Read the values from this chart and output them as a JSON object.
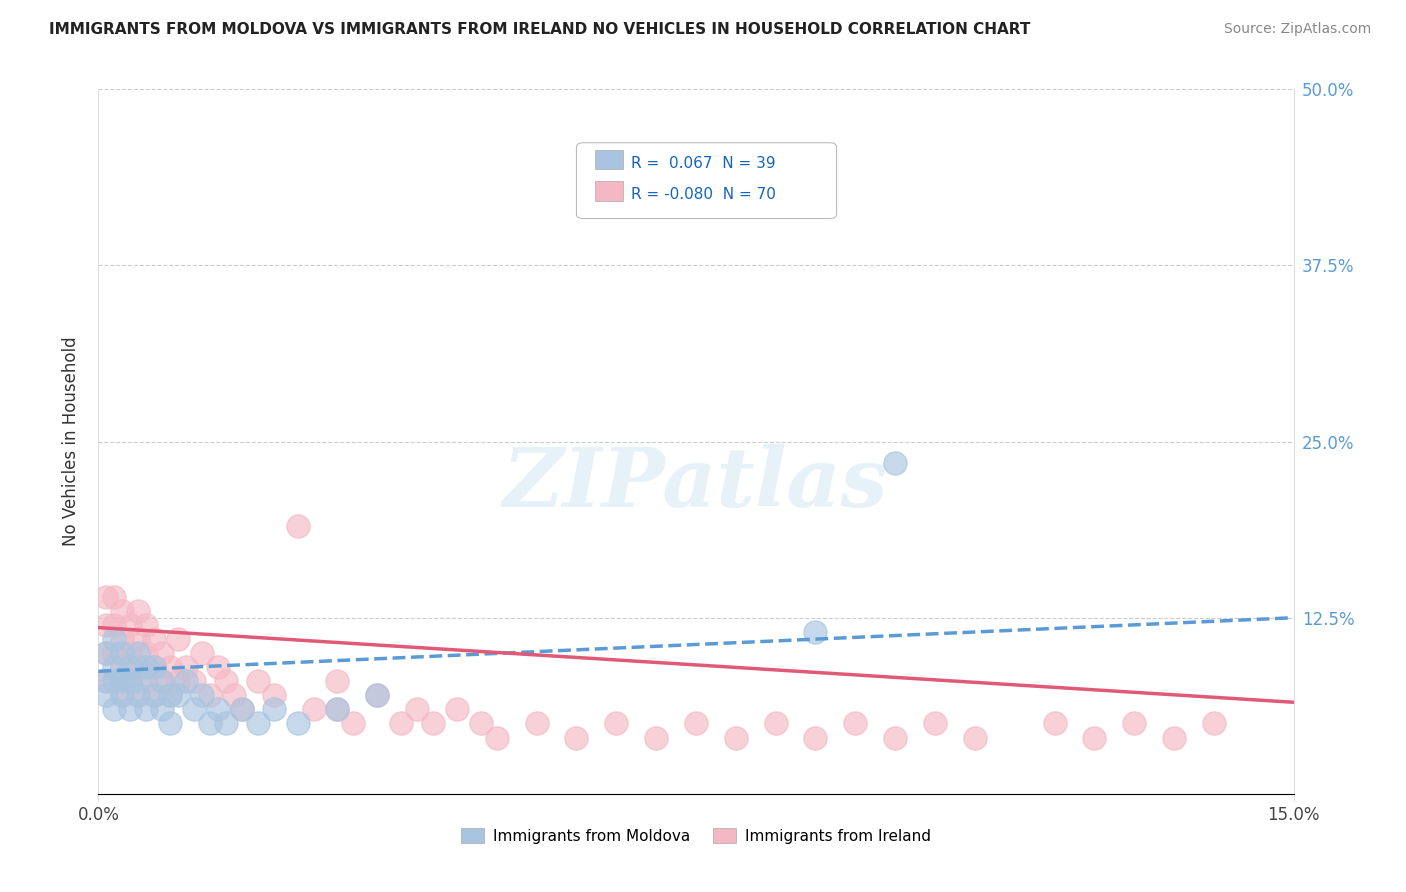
{
  "title": "IMMIGRANTS FROM MOLDOVA VS IMMIGRANTS FROM IRELAND NO VEHICLES IN HOUSEHOLD CORRELATION CHART",
  "source": "Source: ZipAtlas.com",
  "ylabel": "No Vehicles in Household",
  "xlim": [
    0.0,
    0.15
  ],
  "ylim": [
    0.0,
    0.5
  ],
  "ytick_vals": [
    0.0,
    0.125,
    0.25,
    0.375,
    0.5
  ],
  "ytick_labels_right": [
    "",
    "12.5%",
    "25.0%",
    "37.5%",
    "50.0%"
  ],
  "xtick_vals": [
    0.0,
    0.15
  ],
  "xtick_labels": [
    "0.0%",
    "15.0%"
  ],
  "legend_r1": "R =  0.067",
  "legend_n1": "N = 39",
  "legend_r2": "R = -0.080",
  "legend_n2": "N = 70",
  "legend_label1": "Immigrants from Moldova",
  "legend_label2": "Immigrants from Ireland",
  "color_moldova": "#a8c4e0",
  "color_ireland": "#f4b8c4",
  "trend_moldova_color": "#5b9bd5",
  "trend_ireland_color": "#e05a78",
  "watermark": "ZIPatlas",
  "moldova_x": [
    0.001,
    0.001,
    0.001,
    0.002,
    0.002,
    0.002,
    0.002,
    0.003,
    0.003,
    0.003,
    0.004,
    0.004,
    0.004,
    0.005,
    0.005,
    0.005,
    0.006,
    0.006,
    0.007,
    0.007,
    0.008,
    0.008,
    0.009,
    0.009,
    0.01,
    0.011,
    0.012,
    0.013,
    0.014,
    0.015,
    0.016,
    0.018,
    0.02,
    0.022,
    0.025,
    0.03,
    0.035,
    0.09,
    0.1
  ],
  "moldova_y": [
    0.08,
    0.1,
    0.07,
    0.09,
    0.11,
    0.08,
    0.06,
    0.08,
    0.1,
    0.07,
    0.09,
    0.08,
    0.06,
    0.1,
    0.08,
    0.07,
    0.09,
    0.06,
    0.07,
    0.09,
    0.08,
    0.06,
    0.07,
    0.05,
    0.07,
    0.08,
    0.06,
    0.07,
    0.05,
    0.06,
    0.05,
    0.06,
    0.05,
    0.06,
    0.05,
    0.06,
    0.07,
    0.115,
    0.235
  ],
  "ireland_x": [
    0.001,
    0.001,
    0.001,
    0.001,
    0.002,
    0.002,
    0.002,
    0.002,
    0.003,
    0.003,
    0.003,
    0.003,
    0.004,
    0.004,
    0.004,
    0.005,
    0.005,
    0.005,
    0.005,
    0.006,
    0.006,
    0.006,
    0.007,
    0.007,
    0.007,
    0.008,
    0.008,
    0.009,
    0.009,
    0.01,
    0.01,
    0.011,
    0.012,
    0.013,
    0.014,
    0.015,
    0.016,
    0.017,
    0.018,
    0.02,
    0.022,
    0.025,
    0.027,
    0.03,
    0.03,
    0.032,
    0.035,
    0.038,
    0.04,
    0.042,
    0.045,
    0.048,
    0.05,
    0.055,
    0.06,
    0.065,
    0.07,
    0.075,
    0.08,
    0.085,
    0.09,
    0.095,
    0.1,
    0.105,
    0.11,
    0.12,
    0.125,
    0.13,
    0.135,
    0.14
  ],
  "ireland_y": [
    0.12,
    0.14,
    0.1,
    0.08,
    0.12,
    0.1,
    0.14,
    0.08,
    0.11,
    0.13,
    0.09,
    0.07,
    0.1,
    0.12,
    0.08,
    0.11,
    0.09,
    0.13,
    0.07,
    0.1,
    0.08,
    0.12,
    0.09,
    0.11,
    0.07,
    0.08,
    0.1,
    0.07,
    0.09,
    0.08,
    0.11,
    0.09,
    0.08,
    0.1,
    0.07,
    0.09,
    0.08,
    0.07,
    0.06,
    0.08,
    0.07,
    0.19,
    0.06,
    0.06,
    0.08,
    0.05,
    0.07,
    0.05,
    0.06,
    0.05,
    0.06,
    0.05,
    0.04,
    0.05,
    0.04,
    0.05,
    0.04,
    0.05,
    0.04,
    0.05,
    0.04,
    0.05,
    0.04,
    0.05,
    0.04,
    0.05,
    0.04,
    0.05,
    0.04,
    0.05
  ],
  "trend_m_x0": 0.0,
  "trend_m_y0": 0.087,
  "trend_m_x1": 0.15,
  "trend_m_y1": 0.125,
  "trend_i_x0": 0.0,
  "trend_i_y0": 0.118,
  "trend_i_x1": 0.15,
  "trend_i_y1": 0.065
}
